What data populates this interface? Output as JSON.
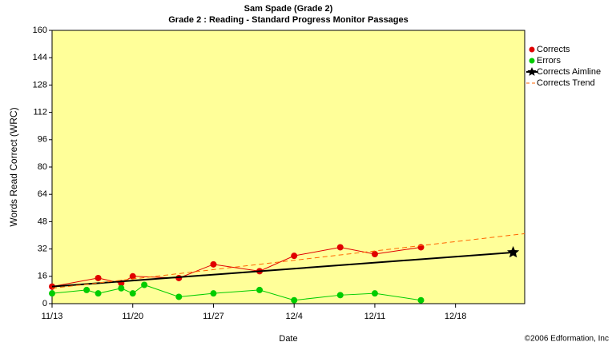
{
  "chart_data": {
    "type": "line",
    "title": "Sam Spade (Grade 2)",
    "subtitle": "Grade 2 : Reading - Standard Progress Monitor Passages",
    "x_label": "Date",
    "y_label": "Words Read Correct (WRC)",
    "footer": "©2006 Edformation, Inc",
    "xlim": [
      "11/13",
      "12/24"
    ],
    "xticks": [
      "11/13",
      "11/20",
      "11/27",
      "12/4",
      "12/11",
      "12/18"
    ],
    "ylim": [
      0,
      160
    ],
    "yticks": [
      0,
      16,
      32,
      48,
      64,
      80,
      96,
      112,
      128,
      144,
      160
    ],
    "plot_background": "#ffff99",
    "legend": "right",
    "series": [
      {
        "name": "Corrects",
        "color": "#e00000",
        "marker": "circle",
        "x": [
          "11/13",
          "11/17",
          "11/19",
          "11/20",
          "11/24",
          "11/27",
          "12/1",
          "12/4",
          "12/8",
          "12/11",
          "12/15"
        ],
        "values": [
          10,
          15,
          12,
          16,
          15,
          23,
          19,
          28,
          33,
          29,
          33
        ]
      },
      {
        "name": "Errors",
        "color": "#00cc00",
        "marker": "circle",
        "x": [
          "11/13",
          "11/16",
          "11/17",
          "11/19",
          "11/20",
          "11/21",
          "11/24",
          "11/27",
          "12/1",
          "12/4",
          "12/8",
          "12/11",
          "12/15"
        ],
        "values": [
          6,
          8,
          6,
          9,
          6,
          11,
          4,
          6,
          8,
          2,
          5,
          6,
          2
        ]
      },
      {
        "name": "Corrects Aimline",
        "color": "#000000",
        "marker": "end-star",
        "x": [
          "11/13",
          "12/23"
        ],
        "values": [
          10,
          30
        ]
      },
      {
        "name": "Corrects Trend",
        "color": "#ff6600",
        "marker": "none",
        "dash": true,
        "x": [
          "11/13",
          "12/24"
        ],
        "values": [
          9,
          41
        ]
      }
    ]
  }
}
